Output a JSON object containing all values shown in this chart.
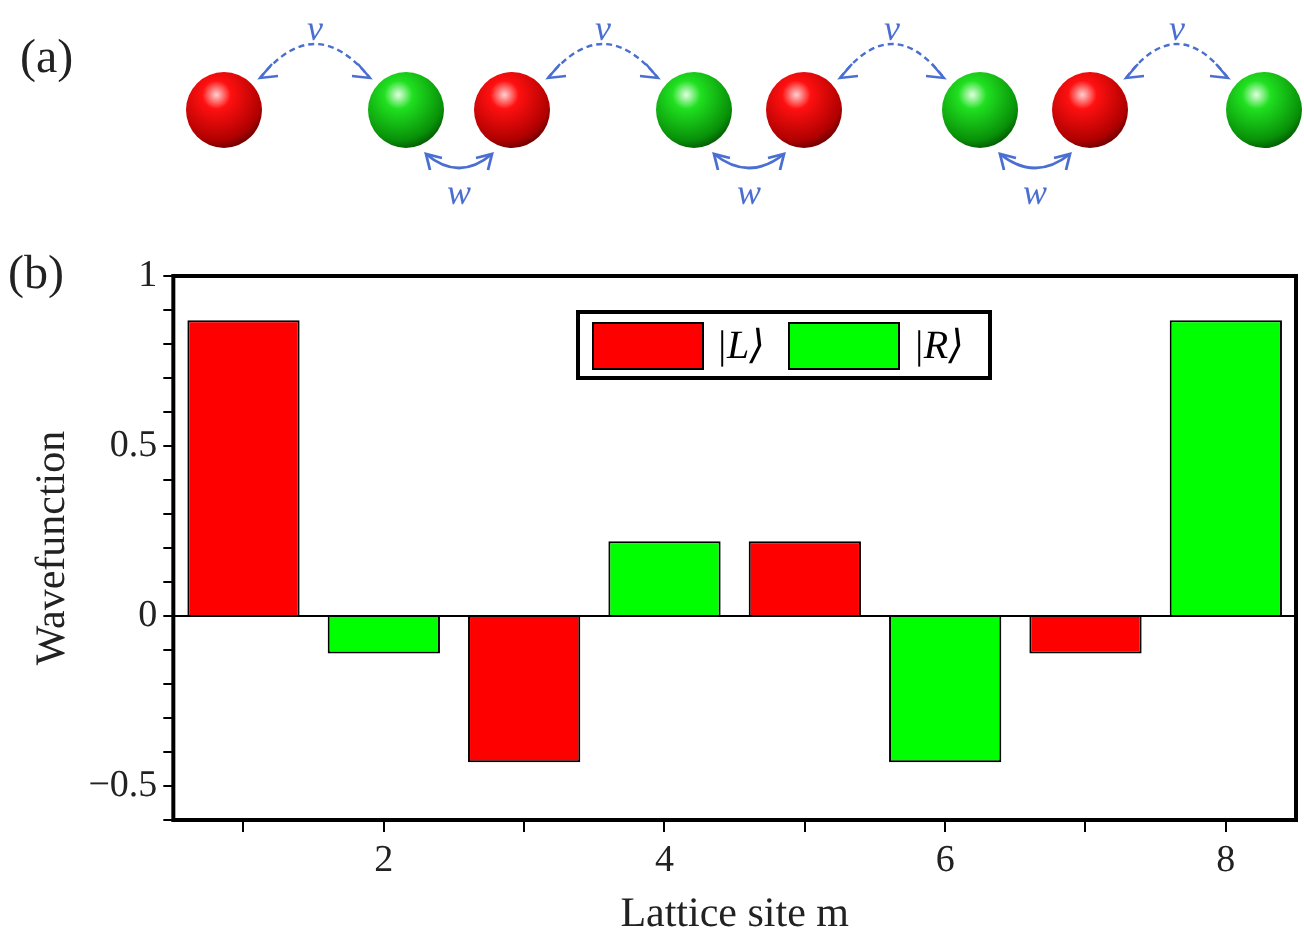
{
  "chart_data": {
    "type": "bar",
    "xlabel": "Lattice site m",
    "ylabel": "Wavefunction",
    "annotations": [
      "(a)",
      "(b)",
      "v",
      "v",
      "v",
      "v",
      "w",
      "w",
      "w"
    ],
    "series": [
      {
        "name": "|L⟩",
        "color": "#ff0000",
        "x": [
          1,
          3,
          5,
          7
        ],
        "values": [
          0.87,
          -0.43,
          0.22,
          -0.11
        ]
      },
      {
        "name": "|R⟩",
        "color": "#00ff00",
        "x": [
          2,
          4,
          6,
          8
        ],
        "values": [
          -0.11,
          0.22,
          -0.43,
          0.87
        ]
      }
    ],
    "xlim": [
      0.5,
      8.5
    ],
    "xticks": [
      {
        "value": 1,
        "label": null
      },
      2,
      {
        "value": 3,
        "label": null
      },
      4,
      {
        "value": 5,
        "label": null
      },
      6,
      {
        "value": 7,
        "label": null
      },
      8
    ],
    "ylim": [
      -0.6,
      1
    ],
    "yticks": [
      {
        "value": -0.6,
        "label": null
      },
      -0.5,
      {
        "value": -0.4,
        "label": null
      },
      {
        "value": -0.3,
        "label": null
      },
      {
        "value": -0.2,
        "label": null
      },
      {
        "value": -0.1,
        "label": null
      },
      0,
      {
        "value": 0.1,
        "label": null
      },
      {
        "value": 0.2,
        "label": null
      },
      {
        "value": 0.3,
        "label": null
      },
      {
        "value": 0.4,
        "label": null
      },
      0.5,
      {
        "value": 0.6,
        "label": null
      },
      {
        "value": 0.7,
        "label": null
      },
      {
        "value": 0.8,
        "label": null
      },
      {
        "value": 0.9,
        "label": null
      },
      1
    ],
    "ref_lines": [
      {
        "axis": "y",
        "value": 0,
        "color": "#000000"
      }
    ],
    "grid": false,
    "legend": "top"
  }
}
